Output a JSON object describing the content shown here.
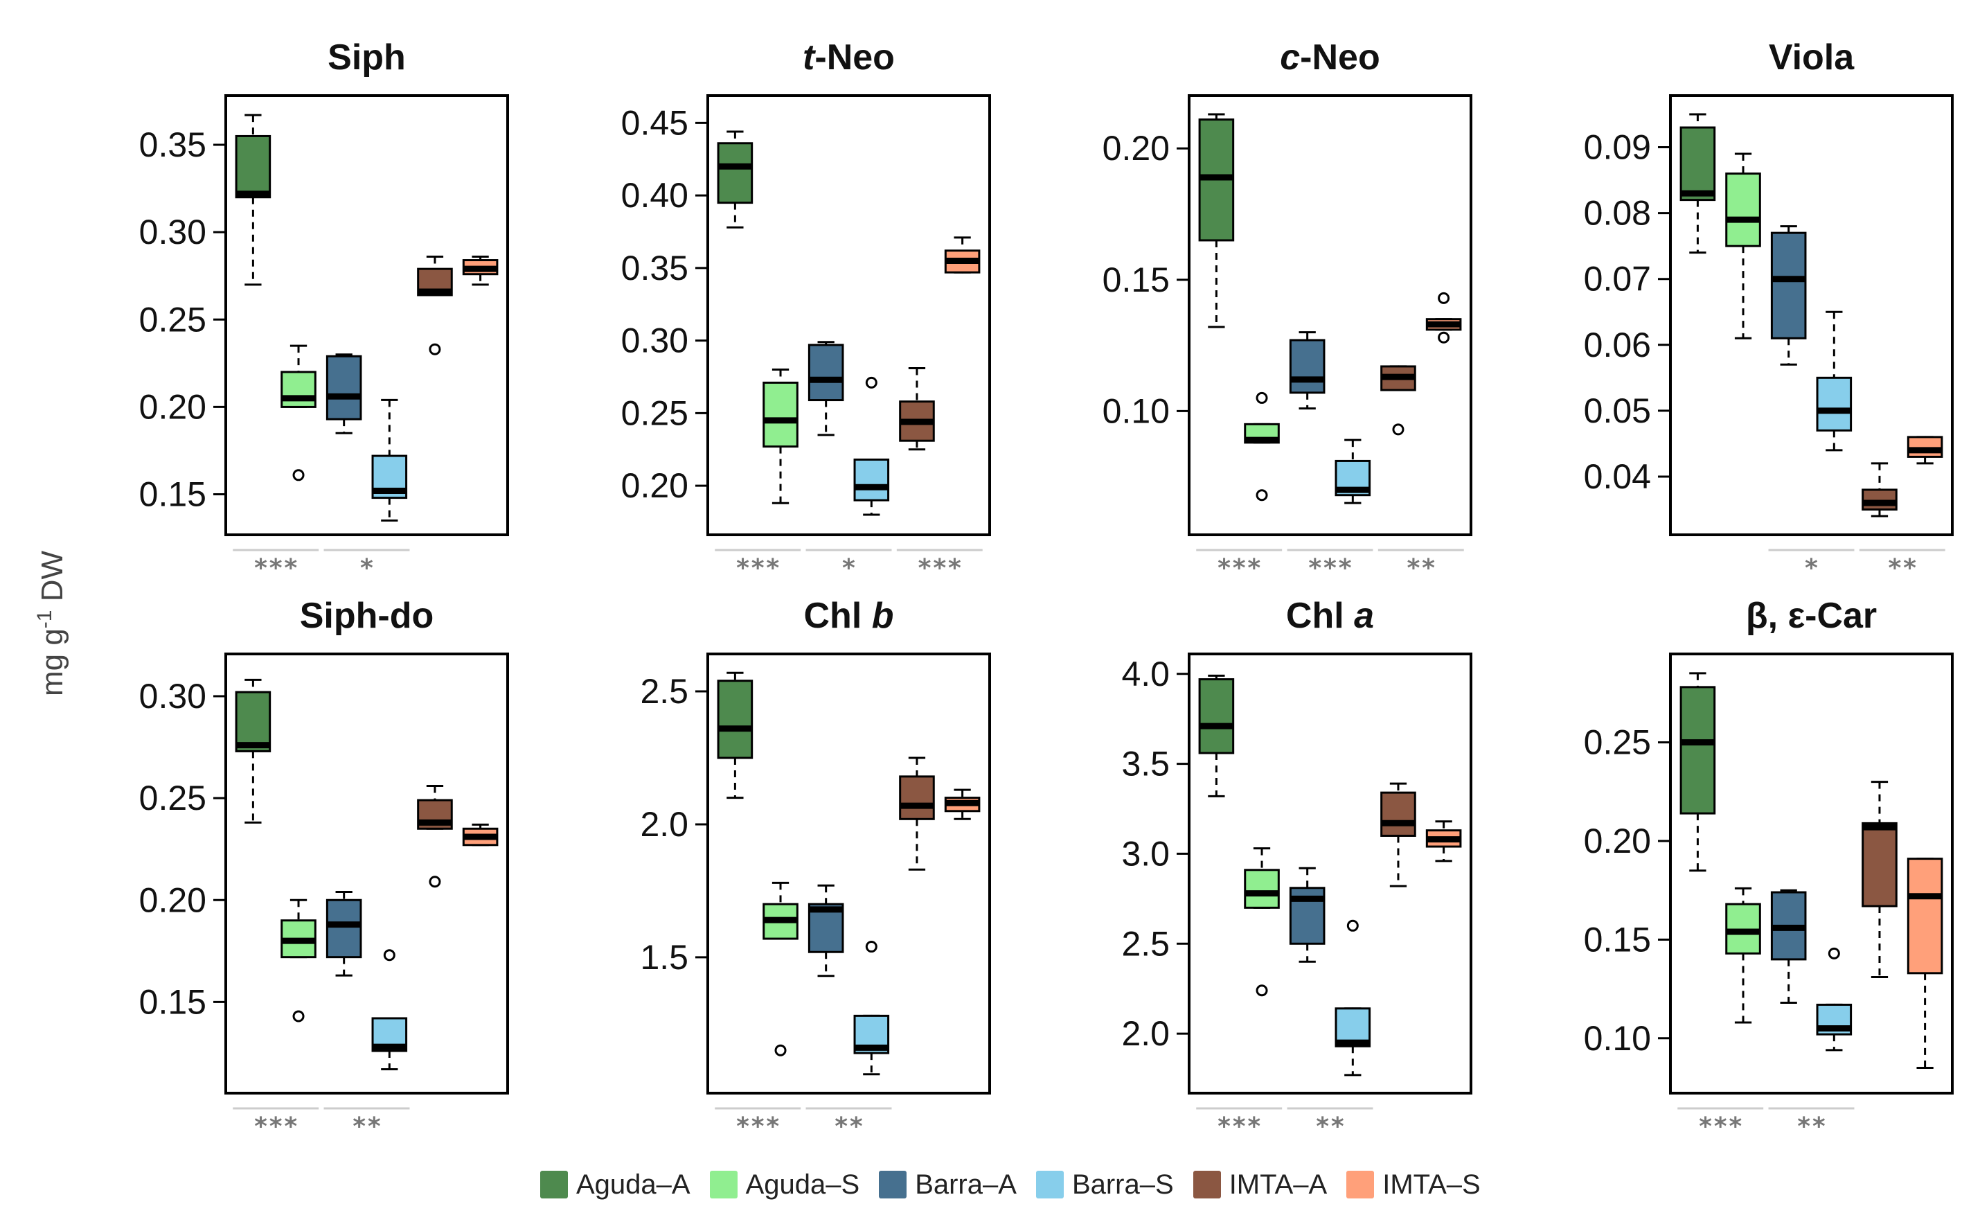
{
  "ylabel": "mg g",
  "ylabel_sup": "-1",
  "ylabel_unit": " DW",
  "colors": {
    "Aguda-A": "#4e8a4e",
    "Aguda-S": "#90ee90",
    "Barra-A": "#46708f",
    "Barra-S": "#87ceeb",
    "IMTA-A": "#8b5742",
    "IMTA-S": "#ffa07a"
  },
  "legend": [
    "Aguda–A",
    "Aguda–S",
    "Barra–A",
    "Barra–S",
    "IMTA–A",
    "IMTA–S"
  ],
  "chart_data": [
    {
      "type": "box",
      "title": "Siph",
      "title_italic": "",
      "ylim": [
        0.13,
        0.375
      ],
      "yticks": [
        "0.15",
        "0.20",
        "0.25",
        "0.30",
        "0.35"
      ],
      "series": [
        {
          "name": "Aguda–A",
          "whislo": 0.27,
          "q1": 0.32,
          "med": 0.322,
          "q3": 0.355,
          "whishi": 0.367,
          "fliers": []
        },
        {
          "name": "Aguda–S",
          "whislo": 0.2,
          "q1": 0.2,
          "med": 0.205,
          "q3": 0.22,
          "whishi": 0.235,
          "fliers": [
            0.161
          ]
        },
        {
          "name": "Barra–A",
          "whislo": 0.185,
          "q1": 0.193,
          "med": 0.206,
          "q3": 0.229,
          "whishi": 0.23,
          "fliers": []
        },
        {
          "name": "Barra–S",
          "whislo": 0.135,
          "q1": 0.148,
          "med": 0.152,
          "q3": 0.172,
          "whishi": 0.204,
          "fliers": []
        },
        {
          "name": "IMTA–A",
          "whislo": 0.264,
          "q1": 0.264,
          "med": 0.266,
          "q3": 0.279,
          "whishi": 0.286,
          "fliers": [
            0.233
          ]
        },
        {
          "name": "IMTA–S",
          "whislo": 0.27,
          "q1": 0.276,
          "med": 0.279,
          "q3": 0.284,
          "whishi": 0.286,
          "fliers": []
        }
      ],
      "significance": [
        {
          "label": "***",
          "pair": 0
        },
        {
          "label": "*",
          "pair": 1
        }
      ]
    },
    {
      "type": "box",
      "title": "-Neo",
      "title_italic": "t",
      "ylim": [
        0.17,
        0.465
      ],
      "yticks": [
        "0.20",
        "0.25",
        "0.30",
        "0.35",
        "0.40",
        "0.45"
      ],
      "series": [
        {
          "name": "Aguda–A",
          "whislo": 0.378,
          "q1": 0.395,
          "med": 0.42,
          "q3": 0.436,
          "whishi": 0.444,
          "fliers": []
        },
        {
          "name": "Aguda–S",
          "whislo": 0.188,
          "q1": 0.227,
          "med": 0.245,
          "q3": 0.271,
          "whishi": 0.28,
          "fliers": []
        },
        {
          "name": "Barra–A",
          "whislo": 0.235,
          "q1": 0.259,
          "med": 0.273,
          "q3": 0.297,
          "whishi": 0.299,
          "fliers": []
        },
        {
          "name": "Barra–S",
          "whislo": 0.18,
          "q1": 0.19,
          "med": 0.199,
          "q3": 0.218,
          "whishi": 0.218,
          "fliers": [
            0.271
          ]
        },
        {
          "name": "IMTA–A",
          "whislo": 0.225,
          "q1": 0.231,
          "med": 0.244,
          "q3": 0.258,
          "whishi": 0.281,
          "fliers": []
        },
        {
          "name": "IMTA–S",
          "whislo": 0.347,
          "q1": 0.347,
          "med": 0.355,
          "q3": 0.362,
          "whishi": 0.371,
          "fliers": []
        }
      ],
      "significance": [
        {
          "label": "***",
          "pair": 0
        },
        {
          "label": "*",
          "pair": 1
        },
        {
          "label": "***",
          "pair": 2
        }
      ]
    },
    {
      "type": "box",
      "title": "-Neo",
      "title_italic": "c",
      "ylim": [
        0.055,
        0.218
      ],
      "yticks": [
        "0.10",
        "0.15",
        "0.20"
      ],
      "series": [
        {
          "name": "Aguda–A",
          "whislo": 0.132,
          "q1": 0.165,
          "med": 0.189,
          "q3": 0.211,
          "whishi": 0.213,
          "fliers": []
        },
        {
          "name": "Aguda–S",
          "whislo": 0.088,
          "q1": 0.088,
          "med": 0.089,
          "q3": 0.095,
          "whishi": 0.095,
          "fliers": [
            0.105,
            0.068
          ]
        },
        {
          "name": "Barra–A",
          "whislo": 0.101,
          "q1": 0.107,
          "med": 0.112,
          "q3": 0.127,
          "whishi": 0.13,
          "fliers": []
        },
        {
          "name": "Barra–S",
          "whislo": 0.065,
          "q1": 0.068,
          "med": 0.07,
          "q3": 0.081,
          "whishi": 0.089,
          "fliers": []
        },
        {
          "name": "IMTA–A",
          "whislo": 0.108,
          "q1": 0.108,
          "med": 0.113,
          "q3": 0.117,
          "whishi": 0.117,
          "fliers": [
            0.093
          ]
        },
        {
          "name": "IMTA–S",
          "whislo": 0.131,
          "q1": 0.131,
          "med": 0.133,
          "q3": 0.135,
          "whishi": 0.135,
          "fliers": [
            0.143,
            0.128
          ]
        }
      ],
      "significance": [
        {
          "label": "***",
          "pair": 0
        },
        {
          "label": "***",
          "pair": 1
        },
        {
          "label": "**",
          "pair": 2
        }
      ]
    },
    {
      "type": "box",
      "title": "Viola",
      "title_italic": "",
      "ylim": [
        0.032,
        0.097
      ],
      "yticks": [
        "0.04",
        "0.05",
        "0.06",
        "0.07",
        "0.08",
        "0.09"
      ],
      "series": [
        {
          "name": "Aguda–A",
          "whislo": 0.074,
          "q1": 0.082,
          "med": 0.083,
          "q3": 0.093,
          "whishi": 0.095,
          "fliers": []
        },
        {
          "name": "Aguda–S",
          "whislo": 0.061,
          "q1": 0.075,
          "med": 0.079,
          "q3": 0.086,
          "whishi": 0.089,
          "fliers": []
        },
        {
          "name": "Barra–A",
          "whislo": 0.057,
          "q1": 0.061,
          "med": 0.07,
          "q3": 0.077,
          "whishi": 0.078,
          "fliers": []
        },
        {
          "name": "Barra–S",
          "whislo": 0.044,
          "q1": 0.047,
          "med": 0.05,
          "q3": 0.055,
          "whishi": 0.065,
          "fliers": []
        },
        {
          "name": "IMTA–A",
          "whislo": 0.034,
          "q1": 0.035,
          "med": 0.036,
          "q3": 0.038,
          "whishi": 0.042,
          "fliers": []
        },
        {
          "name": "IMTA–S",
          "whislo": 0.042,
          "q1": 0.043,
          "med": 0.044,
          "q3": 0.046,
          "whishi": 0.046,
          "fliers": []
        }
      ],
      "significance": [
        {
          "label": "*",
          "pair": 1
        },
        {
          "label": "**",
          "pair": 2
        }
      ]
    },
    {
      "type": "box",
      "title": "Siph-do",
      "title_italic": "",
      "ylim": [
        0.108,
        0.318
      ],
      "yticks": [
        "0.15",
        "0.20",
        "0.25",
        "0.30"
      ],
      "series": [
        {
          "name": "Aguda–A",
          "whislo": 0.238,
          "q1": 0.273,
          "med": 0.276,
          "q3": 0.302,
          "whishi": 0.308,
          "fliers": []
        },
        {
          "name": "Aguda–S",
          "whislo": 0.172,
          "q1": 0.172,
          "med": 0.18,
          "q3": 0.19,
          "whishi": 0.2,
          "fliers": [
            0.143
          ]
        },
        {
          "name": "Barra–A",
          "whislo": 0.163,
          "q1": 0.172,
          "med": 0.188,
          "q3": 0.2,
          "whishi": 0.204,
          "fliers": []
        },
        {
          "name": "Barra–S",
          "whislo": 0.117,
          "q1": 0.126,
          "med": 0.128,
          "q3": 0.142,
          "whishi": 0.142,
          "fliers": [
            0.173
          ]
        },
        {
          "name": "IMTA–A",
          "whislo": 0.235,
          "q1": 0.235,
          "med": 0.238,
          "q3": 0.249,
          "whishi": 0.256,
          "fliers": [
            0.209
          ]
        },
        {
          "name": "IMTA–S",
          "whislo": 0.227,
          "q1": 0.227,
          "med": 0.231,
          "q3": 0.235,
          "whishi": 0.237,
          "fliers": []
        }
      ],
      "significance": [
        {
          "label": "***",
          "pair": 0
        },
        {
          "label": "**",
          "pair": 1
        }
      ]
    },
    {
      "type": "box",
      "title": "Chl ",
      "title_italic": "b",
      "ylim": [
        1.01,
        2.62
      ],
      "yticks": [
        "1.5",
        "2.0",
        "2.5"
      ],
      "series": [
        {
          "name": "Aguda–A",
          "whislo": 2.1,
          "q1": 2.25,
          "med": 2.36,
          "q3": 2.54,
          "whishi": 2.57,
          "fliers": []
        },
        {
          "name": "Aguda–S",
          "whislo": 1.57,
          "q1": 1.57,
          "med": 1.64,
          "q3": 1.7,
          "whishi": 1.78,
          "fliers": [
            1.15
          ]
        },
        {
          "name": "Barra–A",
          "whislo": 1.43,
          "q1": 1.52,
          "med": 1.68,
          "q3": 1.7,
          "whishi": 1.77,
          "fliers": []
        },
        {
          "name": "Barra–S",
          "whislo": 1.06,
          "q1": 1.14,
          "med": 1.16,
          "q3": 1.28,
          "whishi": 1.28,
          "fliers": [
            1.54
          ]
        },
        {
          "name": "IMTA–A",
          "whislo": 1.83,
          "q1": 2.02,
          "med": 2.07,
          "q3": 2.18,
          "whishi": 2.25,
          "fliers": []
        },
        {
          "name": "IMTA–S",
          "whislo": 2.02,
          "q1": 2.05,
          "med": 2.08,
          "q3": 2.1,
          "whishi": 2.13,
          "fliers": []
        }
      ],
      "significance": [
        {
          "label": "***",
          "pair": 0
        },
        {
          "label": "**",
          "pair": 1
        }
      ]
    },
    {
      "type": "box",
      "title": "Chl ",
      "title_italic": "a",
      "ylim": [
        1.7,
        4.08
      ],
      "yticks": [
        "2.0",
        "2.5",
        "3.0",
        "3.5",
        "4.0"
      ],
      "series": [
        {
          "name": "Aguda–A",
          "whislo": 3.32,
          "q1": 3.56,
          "med": 3.71,
          "q3": 3.97,
          "whishi": 3.99,
          "fliers": []
        },
        {
          "name": "Aguda–S",
          "whislo": 2.7,
          "q1": 2.7,
          "med": 2.78,
          "q3": 2.91,
          "whishi": 3.03,
          "fliers": [
            2.24
          ]
        },
        {
          "name": "Barra–A",
          "whislo": 2.4,
          "q1": 2.5,
          "med": 2.75,
          "q3": 2.81,
          "whishi": 2.92,
          "fliers": []
        },
        {
          "name": "Barra–S",
          "whislo": 1.77,
          "q1": 1.93,
          "med": 1.95,
          "q3": 2.14,
          "whishi": 2.14,
          "fliers": [
            2.6
          ]
        },
        {
          "name": "IMTA–A",
          "whislo": 2.82,
          "q1": 3.1,
          "med": 3.17,
          "q3": 3.34,
          "whishi": 3.39,
          "fliers": []
        },
        {
          "name": "IMTA–S",
          "whislo": 2.96,
          "q1": 3.04,
          "med": 3.08,
          "q3": 3.13,
          "whishi": 3.18,
          "fliers": []
        }
      ],
      "significance": [
        {
          "label": "***",
          "pair": 0
        },
        {
          "label": "**",
          "pair": 1
        }
      ]
    },
    {
      "type": "box",
      "title": "β, ε-Car",
      "title_italic": "",
      "ylim": [
        0.075,
        0.292
      ],
      "yticks": [
        "0.10",
        "0.15",
        "0.20",
        "0.25"
      ],
      "series": [
        {
          "name": "Aguda–A",
          "whislo": 0.185,
          "q1": 0.214,
          "med": 0.25,
          "q3": 0.278,
          "whishi": 0.285,
          "fliers": []
        },
        {
          "name": "Aguda–S",
          "whislo": 0.108,
          "q1": 0.143,
          "med": 0.154,
          "q3": 0.168,
          "whishi": 0.176,
          "fliers": []
        },
        {
          "name": "Barra–A",
          "whislo": 0.118,
          "q1": 0.14,
          "med": 0.156,
          "q3": 0.174,
          "whishi": 0.175,
          "fliers": []
        },
        {
          "name": "Barra–S",
          "whislo": 0.094,
          "q1": 0.102,
          "med": 0.105,
          "q3": 0.117,
          "whishi": 0.117,
          "fliers": [
            0.143
          ]
        },
        {
          "name": "IMTA–A",
          "whislo": 0.131,
          "q1": 0.167,
          "med": 0.207,
          "q3": 0.209,
          "whishi": 0.23,
          "fliers": []
        },
        {
          "name": "IMTA–S",
          "whislo": 0.085,
          "q1": 0.133,
          "med": 0.172,
          "q3": 0.191,
          "whishi": 0.191,
          "fliers": []
        }
      ],
      "significance": [
        {
          "label": "***",
          "pair": 0
        },
        {
          "label": "**",
          "pair": 1
        }
      ]
    }
  ]
}
